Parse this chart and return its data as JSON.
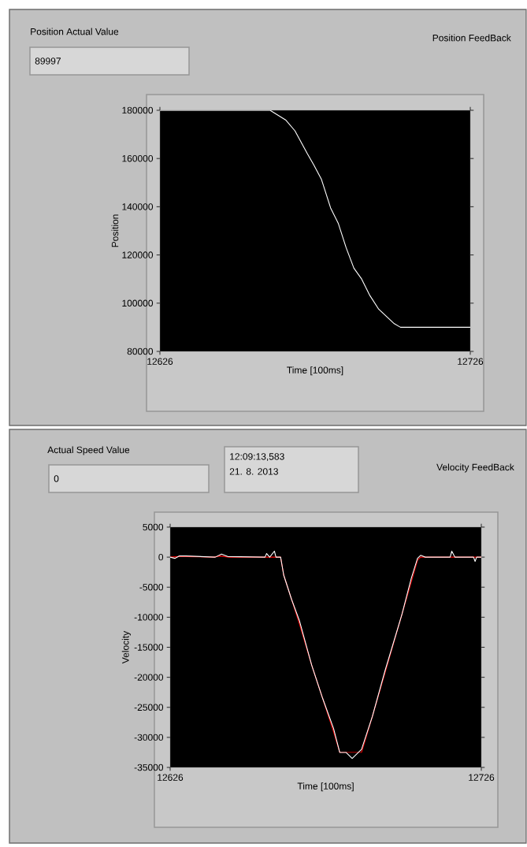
{
  "chart_data": [
    {
      "type": "line",
      "title": "Position FeedBack",
      "xlabel": "Time [100ms]",
      "ylabel": "Position",
      "annotations": [
        "Position Actual Value",
        "89997"
      ],
      "xlim": [
        12626,
        12726
      ],
      "xticks": [
        12626,
        12726
      ],
      "ylim": [
        80000,
        180000
      ],
      "yticks": [
        80000,
        100000,
        120000,
        140000,
        160000,
        180000
      ],
      "series": [
        {
          "color": "#ffffff",
          "x": [
            12626,
            12661.5,
            12666.5,
            12669.5,
            12673.5,
            12675.5,
            12678,
            12681,
            12683.5,
            12686,
            12688.5,
            12691,
            12693.5,
            12696.5,
            12701.5,
            12703.5,
            12706,
            12726
          ],
          "values": [
            180000,
            180000,
            176000,
            171500,
            162000,
            157500,
            151500,
            139500,
            133000,
            123000,
            114500,
            110000,
            103500,
            97500,
            91500,
            90000,
            90000,
            90000
          ]
        }
      ]
    },
    {
      "type": "line",
      "title": "Velocity FeedBack",
      "xlabel": "Time [100ms]",
      "ylabel": "Velocity",
      "annotations": [
        "Actual Speed Value",
        "0",
        "12:09:13,583",
        "21. 8. 2013"
      ],
      "xlim": [
        12626,
        12726
      ],
      "xticks": [
        12626,
        12726
      ],
      "ylim": [
        -35000,
        5000
      ],
      "yticks": [
        -35000,
        -30000,
        -25000,
        -20000,
        -15000,
        -10000,
        -5000,
        0,
        5000
      ],
      "series": [
        {
          "color": "#ff0000",
          "x": [
            12626,
            12629,
            12631,
            12640,
            12642,
            12645,
            12661.5,
            12662.5,
            12667.5,
            12671.5,
            12678.5,
            12680.5,
            12687.5,
            12691,
            12700.5,
            12705.5,
            12706.5,
            12726
          ],
          "values": [
            0,
            100,
            100,
            0,
            200,
            0,
            0,
            -3000,
            -11000,
            -18000,
            -29000,
            -32500,
            -32500,
            -26500,
            -9500,
            -500,
            0,
            0
          ]
        },
        {
          "color": "#ffffff",
          "x": [
            12626,
            12627.5,
            12629,
            12631,
            12640.5,
            12642.5,
            12644.5,
            12656.5,
            12657,
            12658,
            12659.5,
            12660,
            12661.5,
            12662.5,
            12665,
            12667.5,
            12671.5,
            12675,
            12678.5,
            12680.5,
            12682.5,
            12684.5,
            12686.5,
            12687.5,
            12691,
            12695,
            12700.5,
            12703.5,
            12705.5,
            12706.5,
            12708,
            12716,
            12716.5,
            12717.5,
            12723.5,
            12724,
            12724.5,
            12726
          ],
          "values": [
            0,
            -200,
            200,
            200,
            0,
            500,
            100,
            0,
            600,
            0,
            1000,
            0,
            0,
            -3000,
            -7000,
            -10500,
            -18000,
            -23500,
            -28500,
            -32500,
            -32500,
            -33500,
            -32500,
            -32000,
            -26500,
            -19000,
            -9500,
            -3500,
            -200,
            300,
            0,
            0,
            1000,
            0,
            0,
            -700,
            0,
            0
          ]
        }
      ]
    }
  ]
}
